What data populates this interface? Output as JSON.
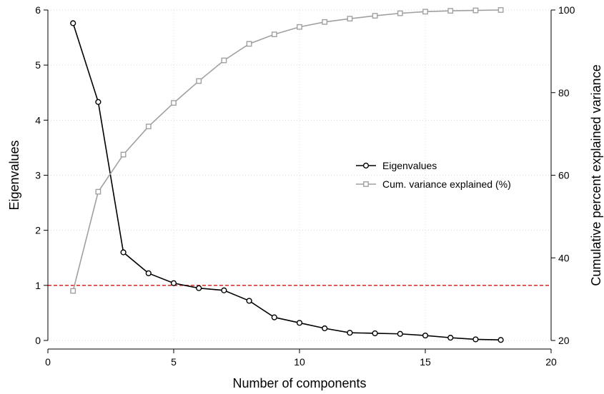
{
  "chart_data": {
    "type": "line",
    "title": "",
    "xlabel": "Number of components",
    "ylabel": "Eigenvalues",
    "y2label": "Cumulative percent explained variance",
    "xlim": [
      0,
      20
    ],
    "ylim": [
      0,
      6
    ],
    "y2lim": [
      20,
      100
    ],
    "x_ticks": [
      0,
      5,
      10,
      15,
      20
    ],
    "y_ticks": [
      0,
      1,
      2,
      3,
      4,
      5,
      6
    ],
    "y2_ticks": [
      20,
      40,
      60,
      80,
      100
    ],
    "grid": true,
    "legend_position": "center-right",
    "reference_line": {
      "axis": "y",
      "value": 1,
      "color": "#e03030",
      "style": "dashed"
    },
    "series": [
      {
        "name": "Eigenvalues",
        "axis": "left",
        "color": "#000000",
        "marker": "circle",
        "x": [
          1,
          2,
          3,
          4,
          5,
          6,
          7,
          8,
          9,
          10,
          11,
          12,
          13,
          14,
          15,
          16,
          17,
          18
        ],
        "values": [
          5.76,
          4.33,
          1.6,
          1.22,
          1.04,
          0.95,
          0.91,
          0.72,
          0.42,
          0.32,
          0.22,
          0.14,
          0.13,
          0.12,
          0.09,
          0.05,
          0.02,
          0.01
        ]
      },
      {
        "name": "Cum. variance explained (%)",
        "axis": "right",
        "color": "#a0a0a0",
        "marker": "square",
        "x": [
          1,
          2,
          3,
          4,
          5,
          6,
          7,
          8,
          9,
          10,
          11,
          12,
          13,
          14,
          15,
          16,
          17,
          18
        ],
        "values": [
          32.0,
          56.0,
          65.0,
          71.8,
          77.5,
          82.8,
          87.8,
          91.8,
          94.1,
          95.9,
          97.1,
          97.9,
          98.6,
          99.2,
          99.6,
          99.8,
          99.9,
          100.0
        ]
      }
    ]
  }
}
